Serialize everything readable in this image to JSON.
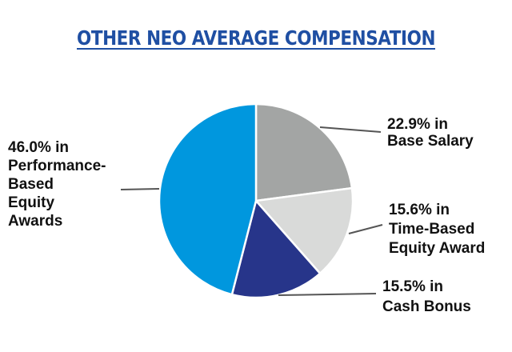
{
  "colors": {
    "title": "#1f4fa3",
    "leader": "#555555",
    "slice_border": "#ffffff"
  },
  "chart_data": {
    "type": "pie",
    "title": "OTHER NEO AVERAGE COMPENSATION",
    "start_angle_deg": 0,
    "direction": "clockwise",
    "slices": [
      {
        "value": 22.9,
        "color": "#a3a5a4",
        "label_lines": [
          "22.9% in",
          "Base Salary"
        ]
      },
      {
        "value": 15.6,
        "color": "#d9dad9",
        "label_lines": [
          "15.6% in",
          "Time-Based",
          "Equity Award"
        ]
      },
      {
        "value": 15.5,
        "color": "#27358a",
        "label_lines": [
          "15.5% in",
          "Cash Bonus"
        ]
      },
      {
        "value": 46.0,
        "color": "#0097de",
        "label_lines": [
          "46.0% in",
          "Performance-",
          "Based",
          "Equity",
          "Awards"
        ]
      }
    ]
  }
}
